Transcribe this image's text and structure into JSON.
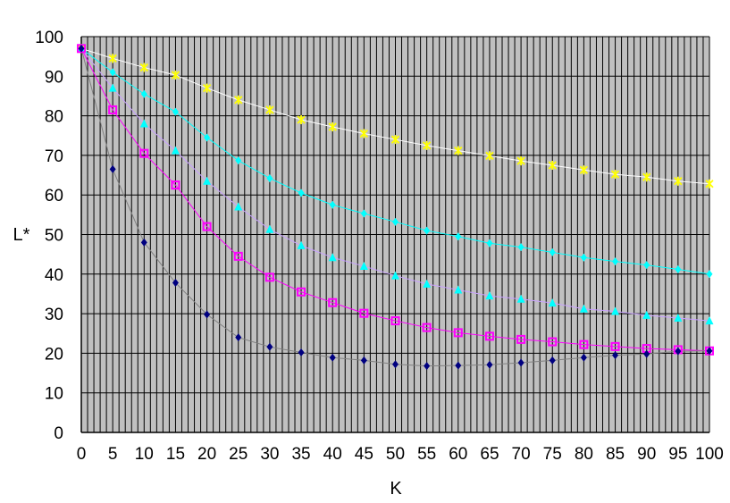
{
  "chart_data": {
    "type": "line",
    "title": "",
    "xlabel": "K",
    "ylabel": "L*",
    "xlim": [
      0,
      100
    ],
    "ylim": [
      0,
      100
    ],
    "x_ticks": [
      0,
      5,
      10,
      15,
      20,
      25,
      30,
      35,
      40,
      45,
      50,
      55,
      60,
      65,
      70,
      75,
      80,
      85,
      90,
      95,
      100
    ],
    "y_ticks": [
      0,
      10,
      20,
      30,
      40,
      50,
      60,
      70,
      80,
      90,
      100
    ],
    "x_tick_labels": [
      "0",
      "5",
      "10",
      "15",
      "20",
      "25",
      "30",
      "35",
      "40",
      "45",
      "50",
      "55",
      "60",
      "65",
      "70",
      "75",
      "80",
      "85",
      "90",
      "95",
      "100"
    ],
    "y_tick_labels": [
      "0",
      "10",
      "20",
      "30",
      "40",
      "50",
      "60",
      "70",
      "80",
      "90",
      "100"
    ],
    "grid": true,
    "plot_background": "#c0c0c0",
    "grid_color": "#000000",
    "legend": "none",
    "x": [
      0,
      5,
      10,
      15,
      20,
      25,
      30,
      35,
      40,
      45,
      50,
      55,
      60,
      65,
      70,
      75,
      80,
      85,
      90,
      95,
      100
    ],
    "series": [
      {
        "color": "#ffff00",
        "line_color": "#ffffff",
        "marker": "cross",
        "values": [
          97,
          94.5,
          92.2,
          90.3,
          87,
          84,
          81.5,
          79,
          77.2,
          75.5,
          74,
          72.5,
          71.2,
          69.9,
          68.6,
          67.5,
          66.3,
          65.2,
          64.5,
          63.5,
          62.8
        ]
      },
      {
        "color": "#00ffff",
        "line_color": "#00ffff",
        "marker": "diamond",
        "values": [
          97,
          91,
          85.5,
          81,
          74.5,
          68.7,
          64.2,
          60.5,
          57.5,
          55.3,
          53.2,
          51,
          49.5,
          47.8,
          46.8,
          45.5,
          44.2,
          43.2,
          42.3,
          41.2,
          40
        ]
      },
      {
        "color": "#00ffff",
        "line_color": "#c8a0ff",
        "marker": "triangle",
        "values": [
          97,
          87,
          78,
          71.2,
          63.5,
          57,
          51.3,
          47.2,
          44.2,
          42,
          39.6,
          37.5,
          36,
          34.5,
          33.7,
          32.7,
          31.2,
          30.6,
          29.6,
          28.9,
          28.2
        ]
      },
      {
        "color": "#ff00ff",
        "line_color": "#ff00ff",
        "marker": "square",
        "values": [
          97,
          81.5,
          70.5,
          62.5,
          52,
          44.5,
          39.2,
          35.5,
          32.8,
          30.1,
          28.2,
          26.5,
          25.2,
          24.3,
          23.5,
          22.9,
          22.2,
          21.7,
          21.2,
          20.9,
          20.6
        ]
      },
      {
        "color": "#000080",
        "line_color": "#808080",
        "marker": "diamond",
        "values": [
          97,
          66.5,
          48,
          37.8,
          29.8,
          24,
          21.6,
          20.2,
          18.9,
          18.2,
          17.2,
          16.8,
          16.9,
          17.1,
          17.6,
          18.2,
          18.9,
          19.5,
          19.8,
          20.5,
          20.6
        ]
      }
    ]
  }
}
